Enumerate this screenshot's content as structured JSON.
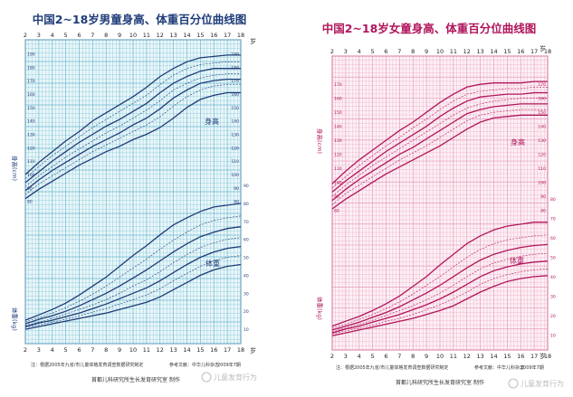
{
  "chart_data": [
    {
      "type": "line",
      "title": "中国2~18岁男童身高、体重百分位曲线图",
      "x_unit": "岁",
      "x": [
        2,
        3,
        4,
        5,
        6,
        7,
        8,
        9,
        10,
        11,
        12,
        13,
        14,
        15,
        16,
        17,
        18
      ],
      "xlim": [
        2,
        18
      ],
      "height_label": "身高",
      "height_axis_label": "身高(cm)",
      "weight_label": "体重",
      "weight_axis_label": "体重(kg)",
      "height_ylim": [
        60,
        195
      ],
      "weight_ylim": [
        5,
        100
      ],
      "height_ticks": [
        80,
        90,
        100,
        110,
        120,
        130,
        140,
        150,
        160,
        170,
        180,
        190
      ],
      "weight_ticks": [
        10,
        20,
        30,
        40,
        50,
        60,
        70,
        80,
        90
      ],
      "height_series": [
        {
          "values": [
            82,
            89,
            95,
            101,
            107,
            112,
            117,
            121,
            126,
            130,
            135,
            142,
            150,
            156,
            159,
            161,
            161
          ]
        },
        {
          "values": [
            85,
            93,
            99,
            105,
            111,
            117,
            122,
            127,
            132,
            137,
            143,
            151,
            158,
            163,
            166,
            167,
            167
          ]
        },
        {
          "values": [
            88,
            96,
            103,
            109,
            115,
            121,
            126,
            131,
            137,
            142,
            149,
            157,
            163,
            168,
            170,
            171,
            171
          ]
        },
        {
          "values": [
            91,
            99,
            106,
            113,
            119,
            125,
            131,
            136,
            142,
            148,
            155,
            163,
            168,
            172,
            174,
            175,
            175
          ]
        },
        {
          "values": [
            94,
            102,
            110,
            117,
            124,
            130,
            136,
            141,
            147,
            153,
            161,
            168,
            173,
            177,
            179,
            179,
            179
          ]
        },
        {
          "values": [
            97,
            106,
            114,
            121,
            128,
            135,
            141,
            147,
            153,
            159,
            167,
            174,
            179,
            182,
            183,
            184,
            184
          ]
        },
        {
          "values": [
            100,
            109,
            117,
            125,
            132,
            140,
            146,
            152,
            158,
            165,
            173,
            179,
            184,
            187,
            188,
            189,
            189
          ]
        }
      ],
      "weight_series": [
        {
          "values": [
            10,
            11.5,
            13,
            14.5,
            16,
            17.5,
            19,
            21,
            23,
            25,
            28,
            32,
            36,
            40,
            43,
            45,
            46
          ]
        },
        {
          "values": [
            11,
            12.5,
            14,
            15.5,
            17.5,
            19.5,
            21.5,
            24,
            26.5,
            29,
            32.5,
            37,
            41,
            45,
            48,
            50,
            51
          ]
        },
        {
          "values": [
            11.5,
            13.5,
            15,
            17,
            19,
            21.5,
            24,
            27,
            30,
            33,
            37,
            41.5,
            46,
            50,
            53,
            55,
            56
          ]
        },
        {
          "values": [
            12,
            14,
            16,
            18.5,
            21,
            23.5,
            26.5,
            30,
            34,
            37.5,
            42,
            47,
            51.5,
            55.5,
            58,
            60,
            61
          ]
        },
        {
          "values": [
            13,
            15.5,
            17.5,
            20,
            23,
            26.5,
            30,
            34,
            38.5,
            43,
            48,
            53,
            57.5,
            61.5,
            64,
            66,
            67
          ]
        },
        {
          "values": [
            14,
            16.5,
            19,
            22,
            25.5,
            29.5,
            34,
            39,
            44,
            49,
            54.5,
            59.5,
            64,
            68,
            70.5,
            72,
            73
          ]
        },
        {
          "values": [
            15,
            18,
            21,
            24.5,
            29,
            34,
            39,
            45,
            51,
            56.5,
            62.5,
            68,
            72,
            75.5,
            78,
            79,
            80
          ]
        }
      ],
      "footnote_left": "注：根据2005年九省/市儿童体格发育调查数据研究制定",
      "footnote_mid": "参考文献：中华儿科杂志",
      "footnote_right": "2009年7期",
      "producer": "首都儿科研究所生长发育研究室  制作",
      "color": "#1e3c78",
      "grid_color": "#6ab8cf",
      "bg_color": "#e9f6f9"
    },
    {
      "type": "line",
      "title": "中国2~18岁女童身高、体重百分位曲线图",
      "x_unit": "岁",
      "x": [
        2,
        3,
        4,
        5,
        6,
        7,
        8,
        9,
        10,
        11,
        12,
        13,
        14,
        15,
        16,
        17,
        18
      ],
      "xlim": [
        2,
        18
      ],
      "height_label": "身高",
      "height_axis_label": "身高(cm)",
      "weight_label": "体重",
      "weight_axis_label": "体重(kg)",
      "height_ylim": [
        60,
        185
      ],
      "weight_ylim": [
        5,
        90
      ],
      "height_ticks": [
        80,
        90,
        100,
        110,
        120,
        130,
        140,
        150,
        160,
        170
      ],
      "weight_ticks": [
        10,
        20,
        30,
        40,
        50,
        60,
        70,
        80
      ],
      "height_series": [
        {
          "values": [
            81,
            88,
            94,
            100,
            106,
            111,
            116,
            121,
            126,
            132,
            138,
            143,
            146,
            147,
            148,
            148,
            148
          ]
        },
        {
          "values": [
            84,
            92,
            98,
            104,
            110,
            116,
            121,
            126,
            132,
            138,
            144,
            148,
            150,
            151,
            152,
            152,
            152
          ]
        },
        {
          "values": [
            87,
            95,
            102,
            108,
            114,
            120,
            125,
            131,
            137,
            143,
            149,
            152,
            154,
            155,
            156,
            156,
            156
          ]
        },
        {
          "values": [
            90,
            98,
            105,
            112,
            118,
            124,
            130,
            136,
            142,
            148,
            153,
            156,
            158,
            159,
            160,
            160,
            160
          ]
        },
        {
          "values": [
            93,
            101,
            108,
            115,
            122,
            128,
            134,
            140,
            147,
            153,
            158,
            161,
            162,
            163,
            163,
            164,
            164
          ]
        },
        {
          "values": [
            96,
            104,
            112,
            119,
            126,
            132,
            139,
            145,
            152,
            158,
            163,
            165,
            166,
            167,
            167,
            168,
            168
          ]
        },
        {
          "values": [
            99,
            108,
            116,
            123,
            130,
            137,
            143,
            150,
            157,
            163,
            168,
            170,
            171,
            171,
            171,
            172,
            172
          ]
        }
      ],
      "weight_series": [
        {
          "values": [
            9.5,
            11,
            12.5,
            14,
            15.5,
            17,
            18.5,
            20.5,
            22.5,
            25,
            28.5,
            32,
            35,
            37.5,
            39,
            40,
            40.5
          ]
        },
        {
          "values": [
            10.5,
            12,
            13.5,
            15,
            17,
            18.5,
            20.5,
            23,
            25.5,
            28.5,
            32,
            36,
            39,
            41,
            42.5,
            43.5,
            44
          ]
        },
        {
          "values": [
            11,
            13,
            14.5,
            16.5,
            18.5,
            20.5,
            23,
            25.5,
            28.5,
            32,
            36,
            40,
            43,
            45,
            46.5,
            47.5,
            48
          ]
        },
        {
          "values": [
            11.5,
            13.5,
            15.5,
            17.5,
            20,
            22.5,
            25,
            28,
            31.5,
            35.5,
            40,
            44,
            47,
            49,
            50.5,
            51.5,
            52
          ]
        },
        {
          "values": [
            12.5,
            14.5,
            16.5,
            19,
            21.5,
            24.5,
            28,
            31.5,
            35.5,
            40,
            44.5,
            48.5,
            51.5,
            53.5,
            55,
            56,
            56.5
          ]
        },
        {
          "values": [
            13.5,
            15.5,
            18,
            20.5,
            23.5,
            27,
            31,
            35.5,
            40,
            45,
            50,
            54,
            57,
            59,
            60,
            61,
            61.5
          ]
        },
        {
          "values": [
            14.5,
            17,
            19.5,
            22.5,
            26,
            30,
            35,
            40,
            46,
            51.5,
            57,
            61,
            64,
            66,
            67,
            68,
            68
          ]
        }
      ],
      "footnote_left": "注：根据2005年九省/市儿童体格发育调查数据研究制定",
      "footnote_mid": "参考文献：中华儿科杂志",
      "footnote_right": "2009年7期",
      "producer": "首都儿科研究所生长发育研究室  制作",
      "color": "#b0155b",
      "grid_color": "#e59bbb",
      "bg_color": "#fdf0f5"
    }
  ],
  "watermark": "儿童发育行为"
}
